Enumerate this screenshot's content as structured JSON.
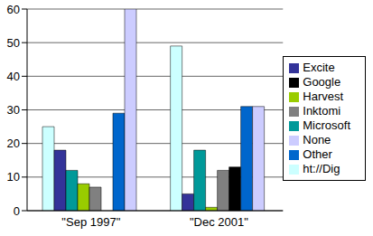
{
  "chart_data": {
    "type": "bar",
    "categories": [
      "\"Sep 1997\"",
      "\"Dec 2001\""
    ],
    "series": [
      {
        "name": "ht://Dig",
        "color": "#ccffff",
        "values": [
          25,
          49
        ]
      },
      {
        "name": "Excite",
        "color": "#333399",
        "values": [
          18,
          5
        ]
      },
      {
        "name": "Microsoft",
        "color": "#009999",
        "values": [
          12,
          18
        ]
      },
      {
        "name": "Harvest",
        "color": "#99cc00",
        "values": [
          8,
          1
        ]
      },
      {
        "name": "Inktomi",
        "color": "#808080",
        "values": [
          7,
          12
        ]
      },
      {
        "name": "Google",
        "color": "#000000",
        "values": [
          0,
          13
        ]
      },
      {
        "name": "Other",
        "color": "#0066cc",
        "values": [
          29,
          31
        ]
      },
      {
        "name": "None",
        "color": "#ccccff",
        "values": [
          60,
          31
        ]
      }
    ],
    "ylim": [
      0,
      60
    ],
    "yticks": [
      0,
      10,
      20,
      30,
      40,
      50,
      60
    ],
    "grid": true,
    "legend": "right"
  }
}
